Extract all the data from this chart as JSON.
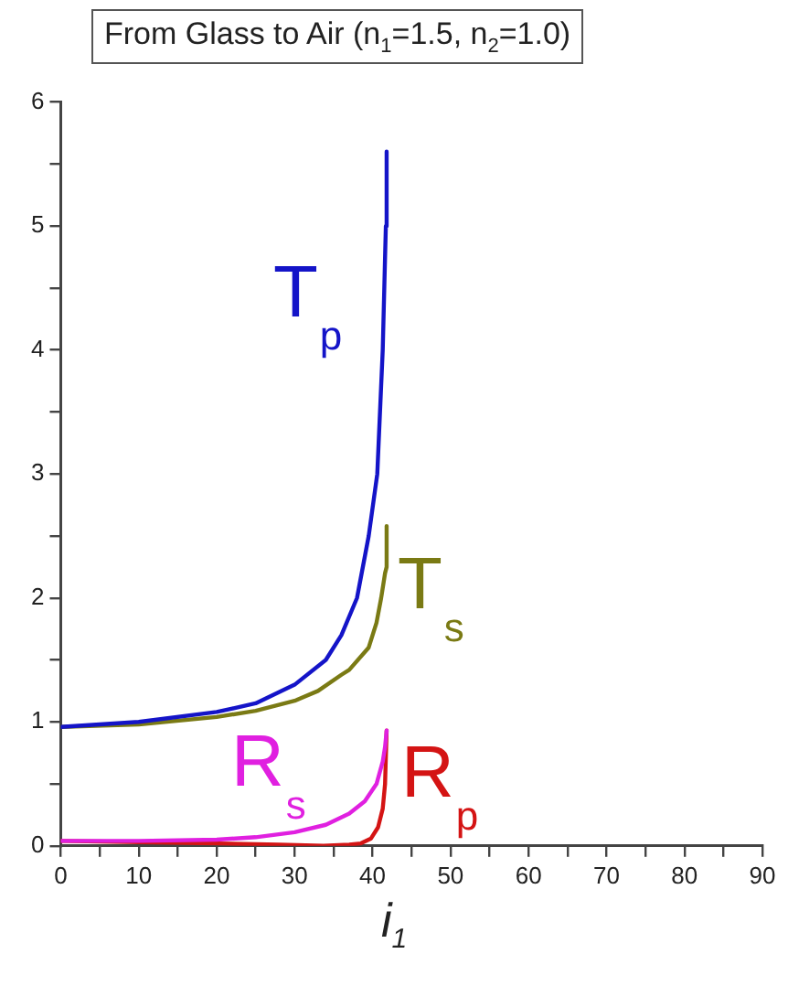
{
  "chart_data": {
    "type": "line",
    "title": "From Glass to Air (n$_{1}$=1.5, n$_{2}$=1.0)",
    "xlabel": "i$_{1}$",
    "xlim": [
      0,
      90
    ],
    "ylim": [
      0,
      6
    ],
    "xticks": [
      0,
      {
        "value": 5,
        "label": null
      },
      10,
      {
        "value": 15,
        "label": null
      },
      20,
      {
        "value": 25,
        "label": null
      },
      30,
      {
        "value": 35,
        "label": null
      },
      40,
      {
        "value": 45,
        "label": null
      },
      50,
      {
        "value": 55,
        "label": null
      },
      60,
      {
        "value": 65,
        "label": null
      },
      70,
      {
        "value": 75,
        "label": null
      },
      80,
      {
        "value": 85,
        "label": null
      },
      90
    ],
    "yticks": [
      0,
      {
        "value": 0.5,
        "label": null
      },
      1,
      {
        "value": 1.5,
        "label": null
      },
      2,
      {
        "value": 2.5,
        "label": null
      },
      3,
      {
        "value": 3.5,
        "label": null
      },
      4,
      {
        "value": 4.5,
        "label": null
      },
      5,
      {
        "value": 5.5,
        "label": null
      },
      6
    ],
    "grid": false,
    "legend": false,
    "marker": "none",
    "line_style": "solid",
    "series": [
      {
        "name": "T$_{p}$",
        "color": "#1414c8",
        "x": [
          0,
          10,
          20,
          25,
          30,
          34,
          36,
          38,
          39.5,
          40.6,
          41.3,
          41.7,
          41.8
        ],
        "values": [
          0.96,
          1.0,
          1.08,
          1.15,
          1.3,
          1.5,
          1.7,
          2.0,
          2.5,
          3.0,
          4.0,
          5.0,
          5.6
        ]
      },
      {
        "name": "T$_{s}$",
        "color": "#7a7a14",
        "x": [
          0,
          10,
          20,
          25,
          30,
          33,
          36,
          37,
          39.5,
          40.5,
          41.1,
          41.6,
          41.8,
          41.8
        ],
        "values": [
          0.96,
          0.98,
          1.04,
          1.09,
          1.17,
          1.25,
          1.38,
          1.42,
          1.6,
          1.8,
          2.0,
          2.2,
          2.25,
          2.58
        ]
      },
      {
        "name": "R$_{s}$",
        "color": "#e020e0",
        "x": [
          0,
          10,
          20,
          25,
          30,
          34,
          37,
          39,
          40.5,
          41.3,
          41.6,
          41.8
        ],
        "values": [
          0.04,
          0.04,
          0.05,
          0.07,
          0.11,
          0.17,
          0.26,
          0.36,
          0.5,
          0.68,
          0.8,
          0.93
        ]
      },
      {
        "name": "R$_{p}$",
        "color": "#d41414",
        "x": [
          0,
          10,
          20,
          28,
          33.7,
          37,
          38.5,
          39.8,
          40.7,
          41.3,
          41.6,
          41.8
        ],
        "values": [
          0.04,
          0.03,
          0.02,
          0.01,
          0,
          0.01,
          0.02,
          0.06,
          0.15,
          0.3,
          0.5,
          0.93
        ]
      }
    ]
  }
}
